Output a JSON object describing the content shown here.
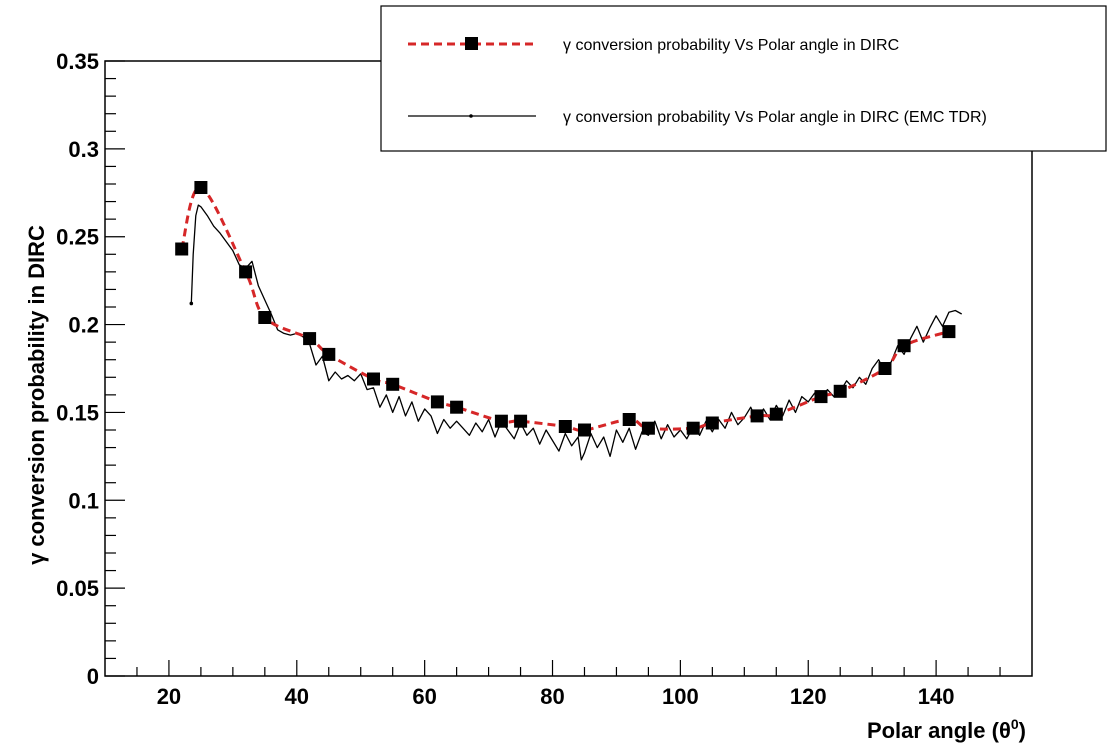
{
  "chart_data": {
    "type": "line",
    "xlabel": "Polar angle (θ⁰)",
    "xlabel_base": "Polar angle (θ",
    "xlabel_sup": "0",
    "xlabel_end": ")",
    "ylabel": "γ conversion probability in DIRC",
    "xlim": [
      10,
      155
    ],
    "ylim": [
      0,
      0.35
    ],
    "x_ticks": [
      20,
      40,
      60,
      80,
      100,
      120,
      140
    ],
    "y_ticks": [
      0,
      0.05,
      0.1,
      0.15,
      0.2,
      0.25,
      0.3,
      0.35
    ],
    "y_tick_labels": [
      "0",
      "0.05",
      "0.1",
      "0.15",
      "0.2",
      "0.25",
      "0.3",
      "0.35"
    ],
    "grid": false,
    "legend_position": "top-right",
    "series": [
      {
        "name": "γ conversion probability Vs Polar angle in DIRC",
        "style": "dashed-smooth-with-square-markers",
        "color": "#d62728",
        "marker_color": "#000000",
        "x": [
          22,
          25,
          32,
          35,
          42,
          45,
          52,
          55,
          62,
          65,
          72,
          75,
          82,
          85,
          92,
          95,
          102,
          105,
          112,
          115,
          122,
          125,
          132,
          135,
          142
        ],
        "y": [
          0.243,
          0.278,
          0.23,
          0.204,
          0.192,
          0.183,
          0.169,
          0.166,
          0.156,
          0.153,
          0.145,
          0.145,
          0.142,
          0.14,
          0.146,
          0.141,
          0.141,
          0.144,
          0.148,
          0.149,
          0.159,
          0.162,
          0.175,
          0.188,
          0.196
        ]
      },
      {
        "name": "γ conversion probability Vs Polar angle in DIRC (EMC TDR)",
        "style": "solid-thin",
        "color": "#000000",
        "x": [
          23.5,
          23.8,
          24.2,
          24.6,
          25,
          26,
          27,
          28,
          29,
          30,
          31,
          32,
          33,
          34,
          35,
          36,
          37,
          38,
          39,
          40,
          41,
          42,
          43,
          44,
          45,
          46,
          47,
          48,
          49,
          50,
          51,
          52,
          53,
          54,
          55,
          56,
          57,
          58,
          59,
          60,
          61,
          62,
          63,
          64,
          65,
          66,
          67,
          68,
          69,
          70,
          71,
          72,
          73,
          74,
          75,
          76,
          77,
          78,
          79,
          80,
          81,
          82,
          83,
          84,
          84.5,
          85,
          86,
          87,
          88,
          89,
          90,
          91,
          92,
          93,
          94,
          95,
          96,
          97,
          98,
          99,
          100,
          101,
          102,
          103,
          104,
          105,
          106,
          107,
          108,
          109,
          110,
          111,
          112,
          113,
          114,
          115,
          116,
          117,
          118,
          119,
          120,
          121,
          122,
          123,
          124,
          125,
          126,
          127,
          128,
          129,
          130,
          131,
          132,
          133,
          134,
          135,
          136,
          137,
          138,
          139,
          140,
          141,
          142,
          143,
          144
        ],
        "y": [
          0.212,
          0.24,
          0.262,
          0.268,
          0.267,
          0.262,
          0.256,
          0.252,
          0.247,
          0.242,
          0.234,
          0.232,
          0.236,
          0.222,
          0.214,
          0.206,
          0.197,
          0.195,
          0.194,
          0.195,
          0.193,
          0.189,
          0.177,
          0.182,
          0.168,
          0.173,
          0.169,
          0.171,
          0.168,
          0.172,
          0.163,
          0.164,
          0.153,
          0.16,
          0.15,
          0.159,
          0.148,
          0.156,
          0.145,
          0.152,
          0.148,
          0.138,
          0.146,
          0.141,
          0.145,
          0.141,
          0.137,
          0.144,
          0.139,
          0.146,
          0.136,
          0.145,
          0.14,
          0.135,
          0.144,
          0.137,
          0.141,
          0.132,
          0.14,
          0.134,
          0.128,
          0.138,
          0.131,
          0.136,
          0.123,
          0.127,
          0.138,
          0.13,
          0.136,
          0.125,
          0.14,
          0.133,
          0.141,
          0.129,
          0.139,
          0.137,
          0.145,
          0.135,
          0.143,
          0.136,
          0.14,
          0.135,
          0.142,
          0.137,
          0.145,
          0.139,
          0.146,
          0.141,
          0.15,
          0.143,
          0.147,
          0.153,
          0.145,
          0.152,
          0.146,
          0.154,
          0.148,
          0.157,
          0.15,
          0.159,
          0.156,
          0.161,
          0.158,
          0.163,
          0.159,
          0.162,
          0.168,
          0.164,
          0.17,
          0.166,
          0.175,
          0.18,
          0.173,
          0.179,
          0.188,
          0.183,
          0.192,
          0.199,
          0.19,
          0.198,
          0.205,
          0.199,
          0.207,
          0.208,
          0.206
        ]
      }
    ]
  }
}
